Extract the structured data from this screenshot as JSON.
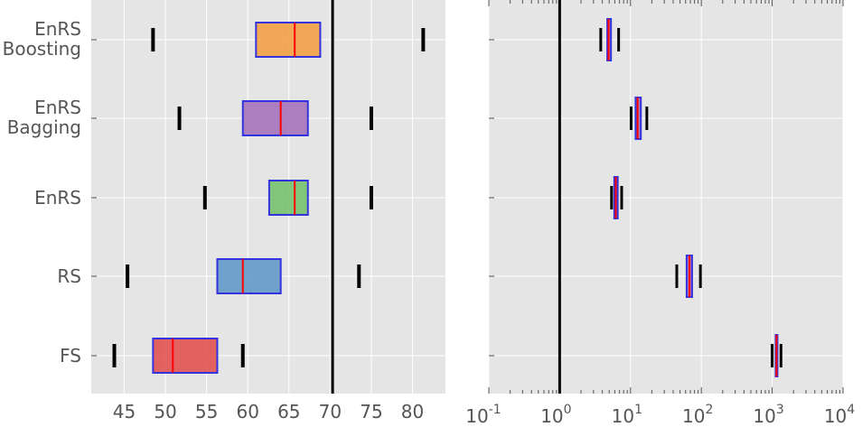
{
  "chart_data": [
    {
      "type": "box",
      "scale": "linear",
      "xlim": [
        41,
        84
      ],
      "xticks": [
        45,
        50,
        55,
        60,
        65,
        70,
        75,
        80
      ],
      "xtick_labels": [
        "45",
        "50",
        "55",
        "60",
        "65",
        "70",
        "75",
        "80"
      ],
      "grid": true,
      "reference_line": 70.3,
      "categories": [
        "EnRS Boosting",
        "EnRS Bagging",
        "EnRS",
        "RS",
        "FS"
      ],
      "category_labels": [
        [
          "EnRS",
          "Boosting"
        ],
        [
          "EnRS",
          "Bagging"
        ],
        [
          "EnRS"
        ],
        [
          "RS"
        ],
        [
          "FS"
        ]
      ],
      "boxes": [
        {
          "whisker_low": 48.5,
          "q1": 61.0,
          "median": 65.7,
          "q3": 68.8,
          "whisker_high": 81.3,
          "color": "#f39c3c"
        },
        {
          "whisker_low": 51.7,
          "q1": 59.4,
          "median": 64.0,
          "q3": 67.3,
          "whisker_high": 75.0,
          "color": "#a06cb8"
        },
        {
          "whisker_low": 54.8,
          "q1": 62.6,
          "median": 65.7,
          "q3": 67.3,
          "whisker_high": 75.0,
          "color": "#6ec066"
        },
        {
          "whisker_low": 45.4,
          "q1": 56.3,
          "median": 59.4,
          "q3": 64.0,
          "whisker_high": 73.5,
          "color": "#5b95c6"
        },
        {
          "whisker_low": 43.8,
          "q1": 48.5,
          "median": 50.9,
          "q3": 56.3,
          "whisker_high": 59.4,
          "color": "#e24a4a"
        }
      ],
      "box_edge_color": "#3333dd",
      "median_color": "#ff0000"
    },
    {
      "type": "box",
      "scale": "log",
      "xlim": [
        0.1,
        10000
      ],
      "xticks": [
        0.1,
        1,
        10,
        100,
        1000,
        10000
      ],
      "xtick_labels": [
        [
          "10",
          "-1"
        ],
        [
          "10",
          "0"
        ],
        [
          "10",
          "1"
        ],
        [
          "10",
          "2"
        ],
        [
          "10",
          "3"
        ],
        [
          "10",
          "4"
        ]
      ],
      "grid": true,
      "reference_line": 1,
      "categories": [
        "EnRS Boosting",
        "EnRS Bagging",
        "EnRS",
        "RS",
        "FS"
      ],
      "boxes": [
        {
          "whisker_low": 3.8,
          "q1": 4.7,
          "median": 4.9,
          "q3": 5.3,
          "whisker_high": 6.8
        },
        {
          "whisker_low": 10.2,
          "q1": 11.8,
          "median": 12.6,
          "q3": 14.0,
          "whisker_high": 17.0
        },
        {
          "whisker_low": 5.4,
          "q1": 5.9,
          "median": 6.2,
          "q3": 6.6,
          "whisker_high": 7.5
        },
        {
          "whisker_low": 45,
          "q1": 62,
          "median": 68,
          "q3": 74,
          "whisker_high": 97
        },
        {
          "whisker_low": 1000,
          "q1": 1120,
          "median": 1150,
          "q3": 1180,
          "whisker_high": 1330
        }
      ],
      "box_color": "#a06cb8",
      "box_edge_color": "#3333dd",
      "median_color": "#ff0000"
    }
  ]
}
